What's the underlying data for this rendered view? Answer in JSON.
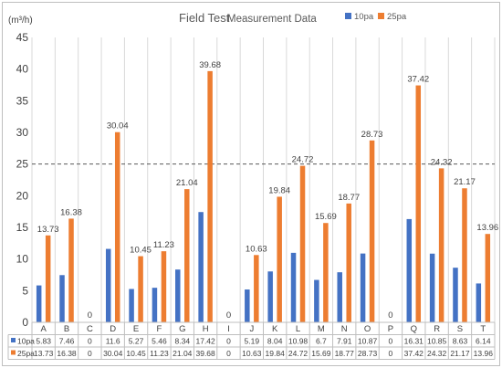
{
  "chart_data": {
    "type": "bar",
    "title_main": "Field Test",
    "title_rest": " Measurement Data",
    "ylabel": "(m³/h)",
    "xlabel": "",
    "ylim": [
      0,
      45
    ],
    "yticks": [
      0,
      5,
      10,
      15,
      20,
      25,
      30,
      35,
      40,
      45
    ],
    "reference_line": 25,
    "grid": "vertical",
    "legend_position": "top-right",
    "categories": [
      "A",
      "B",
      "C",
      "D",
      "E",
      "F",
      "G",
      "H",
      "I",
      "J",
      "K",
      "L",
      "M",
      "N",
      "O",
      "P",
      "Q",
      "R",
      "S",
      "T"
    ],
    "series": [
      {
        "name": "10pa",
        "color": "#4472c4",
        "values": [
          5.83,
          7.46,
          0,
          11.6,
          5.27,
          5.46,
          8.34,
          17.42,
          0,
          5.19,
          8.04,
          10.98,
          6.7,
          7.91,
          10.87,
          0,
          16.31,
          10.85,
          8.63,
          6.14
        ]
      },
      {
        "name": "25pa",
        "color": "#ed7d31",
        "values": [
          13.73,
          16.38,
          0,
          30.04,
          10.45,
          11.23,
          21.04,
          39.68,
          0,
          10.63,
          19.84,
          24.72,
          15.69,
          18.77,
          28.73,
          0,
          37.42,
          24.32,
          21.17,
          13.96
        ]
      }
    ],
    "table_rows": [
      [
        "5.83",
        "7.46",
        "0",
        "11.6",
        "5.27",
        "5.46",
        "8.34",
        "17.42",
        "0",
        "5.19",
        "8.04",
        "10.98",
        "6.7",
        "7.91",
        "10.87",
        "0",
        "16.31",
        "10.85",
        "8.63",
        "6.14"
      ],
      [
        "13.73",
        "16.38",
        "0",
        "30.04",
        "10.45",
        "11.23",
        "21.04",
        "39.68",
        "0",
        "10.63",
        "19.84",
        "24.72",
        "15.69",
        "18.77",
        "28.73",
        "0",
        "37.42",
        "24.32",
        "21.17",
        "13.96"
      ]
    ],
    "bar_labels": [
      "13.73",
      "16.38",
      "0",
      "30.04",
      "10.45",
      "11.23",
      "21.04",
      "39.68",
      "0",
      "10.63",
      "19.84",
      "24.72",
      "15.69",
      "18.77",
      "28.73",
      "0",
      "37.42",
      "24.32",
      "21.17",
      "13.96"
    ]
  }
}
